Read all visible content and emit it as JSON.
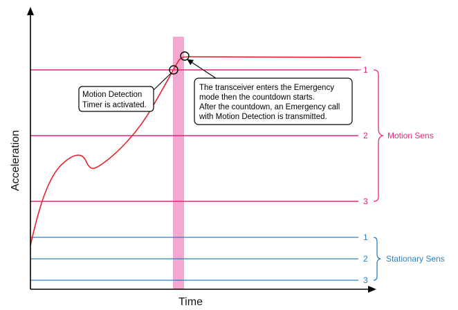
{
  "axes": {
    "x_label": "Time",
    "y_label": "Acceleration"
  },
  "motion_sens": {
    "label": "Motion Sens",
    "color": "#e6237d",
    "levels": [
      "1",
      "2",
      "3"
    ]
  },
  "stationary_sens": {
    "label": "Stationary Sens",
    "color": "#2b7fc1",
    "levels": [
      "1",
      "2",
      "3"
    ]
  },
  "curve_color": "#e8202a",
  "highlight_band_color": "#f5a8cf",
  "callouts": {
    "timer": {
      "lines": [
        "Motion Detection",
        "Timer is activated."
      ]
    },
    "emergency": {
      "lines": [
        "The transceiver enters the Emergency",
        "mode then the countdown starts.",
        "After the countdown, an Emergency call",
        "with Motion Detection is transmitted."
      ]
    }
  }
}
